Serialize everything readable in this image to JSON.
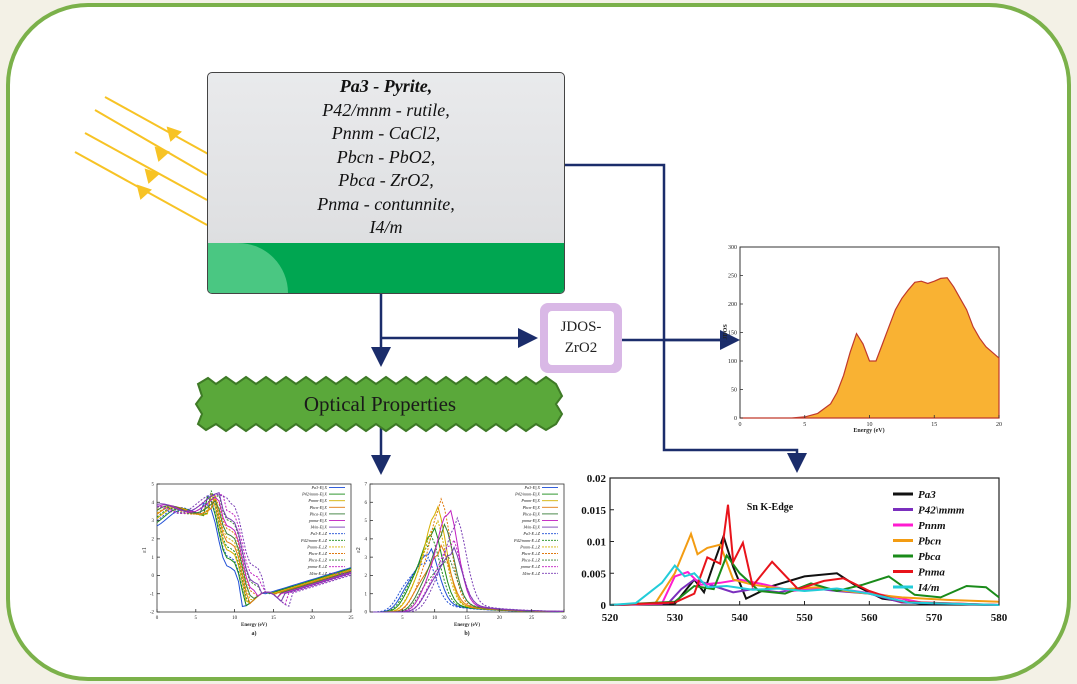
{
  "phases": {
    "line1": "Pa3 - Pyrite,",
    "line2": "P42/mnm - rutile,",
    "line3": "Pnnm - CaCl2,",
    "line4": "Pbcn - PbO2,",
    "line5": "Pbca - ZrO2,",
    "line6": "Pnma - contunnite,",
    "line7": "I4/m"
  },
  "jdos_box": {
    "line1": "JDOS-",
    "line2": "ZrO2"
  },
  "optical": {
    "label": "Optical Properties"
  },
  "colors": {
    "frame_green": "#7bb14a",
    "arrow_navy": "#1b2d6b",
    "sun_yellow": "#f7c325",
    "jdos_fill": "#f9b233",
    "jdos_line": "#c0392b"
  },
  "chart_data": [
    {
      "type": "area",
      "xlabel": "Energy (eV)",
      "ylabel": "JDOS",
      "xlim": [
        0,
        20
      ],
      "ylim": [
        0,
        300
      ],
      "x_ticks": [
        "0",
        "5",
        "10",
        "15",
        "20"
      ],
      "y_ticks": [
        "0",
        "50",
        "100",
        "150",
        "200",
        "250",
        "300"
      ],
      "x": [
        0,
        4,
        5,
        6,
        7,
        7.5,
        8,
        8.5,
        9,
        9.5,
        10,
        10.5,
        11,
        11.5,
        12,
        12.5,
        13,
        13.5,
        14,
        14.5,
        15,
        15.5,
        16,
        16.5,
        17,
        17.5,
        18,
        18.5,
        19,
        19.5,
        20
      ],
      "y": [
        0,
        0,
        2,
        8,
        25,
        45,
        75,
        115,
        148,
        130,
        100,
        100,
        130,
        160,
        190,
        210,
        225,
        238,
        240,
        236,
        240,
        245,
        246,
        230,
        210,
        190,
        160,
        140,
        125,
        115,
        105
      ]
    },
    {
      "type": "line",
      "title": "Sn K-Edge",
      "xlim": [
        520,
        580
      ],
      "ylim": [
        0,
        0.02
      ],
      "x_ticks": [
        "520",
        "530",
        "540",
        "550",
        "560",
        "570",
        "580"
      ],
      "y_ticks": [
        "0",
        "0.005",
        "0.01",
        "0.015",
        "0.02"
      ],
      "series": [
        {
          "name": "Pa3",
          "color": "#111111",
          "x": [
            520,
            530,
            533,
            534.5,
            536,
            537.5,
            539,
            541,
            545,
            550,
            555,
            558,
            562,
            568,
            580
          ],
          "y": [
            0,
            0.0002,
            0.004,
            0.002,
            0.0065,
            0.0108,
            0.006,
            0.001,
            0.003,
            0.0045,
            0.005,
            0.003,
            0.001,
            0.0002,
            0
          ]
        },
        {
          "name": "P42\\mmm",
          "color": "#7b2fbe",
          "x": [
            520,
            529,
            531,
            533,
            536,
            539,
            542,
            546,
            550,
            555,
            560,
            565,
            580
          ],
          "y": [
            0,
            0.0003,
            0.0025,
            0.004,
            0.003,
            0.002,
            0.0025,
            0.002,
            0.0028,
            0.0022,
            0.0018,
            0.0004,
            0
          ]
        },
        {
          "name": "Pnnm",
          "color": "#ff1bd0",
          "x": [
            520,
            528,
            530,
            532,
            534,
            537,
            540,
            544,
            548,
            552,
            557,
            562,
            568,
            580
          ],
          "y": [
            0,
            0.0002,
            0.0045,
            0.0052,
            0.0032,
            0.0035,
            0.004,
            0.0032,
            0.0022,
            0.0026,
            0.0023,
            0.0016,
            0.0004,
            0
          ]
        },
        {
          "name": "Pbcn",
          "color": "#f39c12",
          "x": [
            520,
            527,
            530,
            532.5,
            533.5,
            535,
            537,
            539,
            542,
            547,
            552,
            558,
            565,
            572,
            580
          ],
          "y": [
            0,
            0.0003,
            0.005,
            0.0112,
            0.008,
            0.009,
            0.0095,
            0.004,
            0.0032,
            0.0025,
            0.0028,
            0.002,
            0.0012,
            0.0008,
            0.0005
          ]
        },
        {
          "name": "Pbca",
          "color": "#1a8b1a",
          "x": [
            520,
            530,
            533,
            536,
            538,
            540,
            543,
            547,
            551,
            555,
            559,
            563,
            567,
            571,
            575,
            578,
            580
          ],
          "y": [
            0,
            0.0005,
            0.003,
            0.0025,
            0.0078,
            0.005,
            0.0022,
            0.0018,
            0.0034,
            0.0022,
            0.0032,
            0.0045,
            0.0016,
            0.0012,
            0.003,
            0.0028,
            0.0012
          ]
        },
        {
          "name": "Pnma",
          "color": "#e8141b",
          "x": [
            520,
            530,
            533,
            535,
            537,
            538.2,
            539,
            540.5,
            542,
            545,
            549,
            553,
            556,
            560,
            565,
            580
          ],
          "y": [
            0,
            0.0004,
            0.0018,
            0.0075,
            0.0065,
            0.0158,
            0.0068,
            0.0098,
            0.003,
            0.0068,
            0.0025,
            0.0038,
            0.0042,
            0.0022,
            0.0005,
            0
          ]
        },
        {
          "name": "I4/m",
          "color": "#22ccd9",
          "x": [
            520,
            524,
            528,
            530,
            531.5,
            533,
            535,
            538,
            542,
            546,
            550,
            555,
            560,
            566,
            580
          ],
          "y": [
            0,
            0.0003,
            0.0035,
            0.0062,
            0.0045,
            0.005,
            0.0028,
            0.003,
            0.0024,
            0.0026,
            0.0022,
            0.0026,
            0.0018,
            0.0004,
            0
          ]
        }
      ]
    },
    {
      "type": "line",
      "xlabel": "Energy (eV)",
      "ylabel": "ε1",
      "panel": "a)",
      "xlim": [
        0,
        25
      ],
      "ylim": [
        -2,
        5
      ],
      "x_ticks": [
        "0",
        "5",
        "10",
        "15",
        "20",
        "25"
      ],
      "y_ticks": [
        "-2",
        "-1",
        "0",
        "1",
        "2",
        "3",
        "4",
        "5"
      ],
      "legend": [
        "Pa3-E||X",
        "P42/mnm-E||X",
        "Pnnm-E||X",
        "Pbcn-E||X",
        "Pbca-E||X",
        "pnma-E||X",
        "I4/m-E||X",
        "Pa3-E⊥Z",
        "P42/mnm-E⊥Z",
        "Pnnm-E⊥Z",
        "Pbcn-E⊥Z",
        "Pbca-E⊥Z",
        "pnma-E⊥Z",
        "I4/m-E⊥Z"
      ]
    },
    {
      "type": "line",
      "xlabel": "Energy (eV)",
      "ylabel": "ε2",
      "panel": "b)",
      "xlim": [
        0,
        30
      ],
      "ylim": [
        0,
        7
      ],
      "x_ticks": [
        "5",
        "10",
        "15",
        "20",
        "25",
        "30"
      ],
      "y_ticks": [
        "0",
        "1",
        "2",
        "3",
        "4",
        "5",
        "6",
        "7"
      ],
      "legend": [
        "Pa3-E||X",
        "P42/mnm-E||X",
        "Pnnm-E||X",
        "Pbcn-E||X",
        "Pbca-E||X",
        "pnma-E||X",
        "I4/m-E||X",
        "Pa3-E⊥Z",
        "P42/mnm-E⊥Z",
        "Pnnm-E⊥Z",
        "Pbcn-E⊥Z",
        "Pbca-E⊥Z",
        "pnma-E⊥Z",
        "I4/m-E⊥Z"
      ]
    }
  ]
}
